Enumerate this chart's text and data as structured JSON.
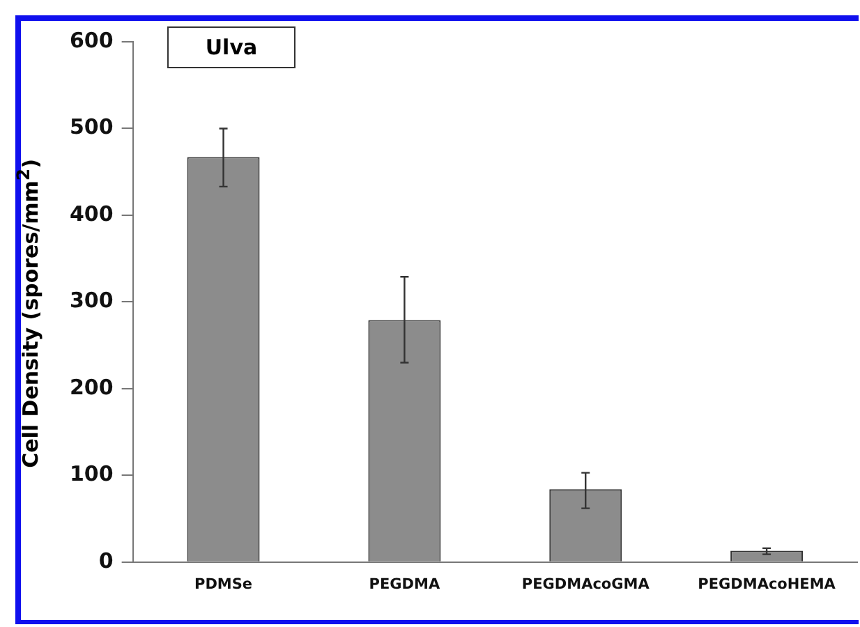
{
  "chart_data": {
    "type": "bar",
    "title": "Ulva",
    "ylabel": "Cell Density (spores/mm$^{2}$)",
    "categories": [
      "PDMSe",
      "PEGDMA",
      "PEGDMAcoGMA",
      "PEGDMAcoHEMA"
    ],
    "values": [
      467,
      279,
      84,
      13
    ],
    "color": "#8c8c8c",
    "errors": [
      [
        433,
        500
      ],
      [
        230,
        329
      ],
      [
        62,
        103
      ],
      [
        9,
        16
      ]
    ],
    "ylim": [
      0,
      600
    ],
    "yticks": [
      0,
      100,
      200,
      300,
      400,
      500,
      600
    ],
    "grid": false,
    "legend": false
  }
}
